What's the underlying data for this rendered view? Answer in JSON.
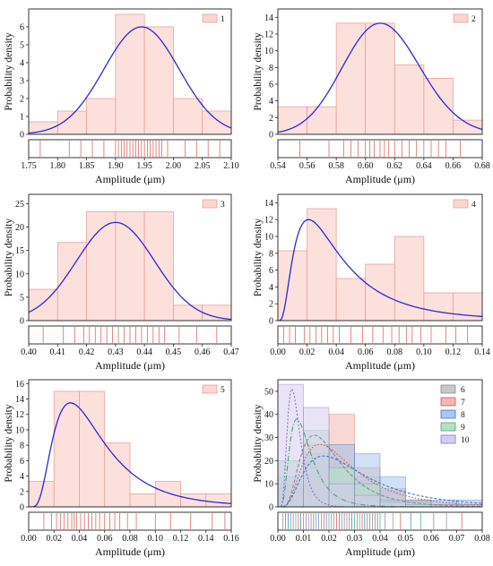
{
  "chart_data": [
    {
      "type": "bar",
      "legend": [
        "1"
      ],
      "xlabel": "Amplitude (μm)",
      "ylabel": "Probability density",
      "xlim": [
        1.75,
        2.1
      ],
      "ylim": [
        0,
        7
      ],
      "xticks": [
        1.75,
        1.8,
        1.85,
        1.9,
        1.95,
        2.0,
        2.05,
        2.1
      ],
      "xtick_decimals": 2,
      "yticks": [
        0,
        1,
        2,
        3,
        4,
        5,
        6
      ],
      "bins": [
        {
          "x0": 1.75,
          "x1": 1.8,
          "value": 0.7
        },
        {
          "x0": 1.8,
          "x1": 1.85,
          "value": 1.3
        },
        {
          "x0": 1.85,
          "x1": 1.9,
          "value": 2.0
        },
        {
          "x0": 1.9,
          "x1": 1.95,
          "value": 6.7
        },
        {
          "x0": 1.95,
          "x1": 2.0,
          "value": 6.0
        },
        {
          "x0": 2.0,
          "x1": 2.05,
          "value": 2.0
        },
        {
          "x0": 2.05,
          "x1": 2.1,
          "value": 1.3
        }
      ],
      "fit": {
        "kind": "normal",
        "mean": 1.945,
        "sd": 0.065,
        "peak": 6.0
      },
      "rug": [
        1.77,
        1.82,
        1.84,
        1.86,
        1.88,
        1.9,
        1.905,
        1.91,
        1.915,
        1.92,
        1.925,
        1.93,
        1.935,
        1.94,
        1.945,
        1.95,
        1.955,
        1.96,
        1.965,
        1.97,
        1.975,
        1.98,
        1.99,
        2.02,
        2.04,
        2.06,
        2.08
      ]
    },
    {
      "type": "bar",
      "legend": [
        "2"
      ],
      "xlabel": "Amplitude (μm)",
      "ylabel": "Probability density",
      "xlim": [
        0.54,
        0.68
      ],
      "ylim": [
        0,
        15
      ],
      "xticks": [
        0.54,
        0.56,
        0.58,
        0.6,
        0.62,
        0.64,
        0.66,
        0.68
      ],
      "xtick_decimals": 2,
      "yticks": [
        0,
        2,
        4,
        6,
        8,
        10,
        12,
        14
      ],
      "bins": [
        {
          "x0": 0.54,
          "x1": 0.56,
          "value": 3.3
        },
        {
          "x0": 0.56,
          "x1": 0.58,
          "value": 3.3
        },
        {
          "x0": 0.58,
          "x1": 0.6,
          "value": 13.3
        },
        {
          "x0": 0.6,
          "x1": 0.62,
          "value": 13.3
        },
        {
          "x0": 0.62,
          "x1": 0.64,
          "value": 8.3
        },
        {
          "x0": 0.64,
          "x1": 0.66,
          "value": 6.7
        },
        {
          "x0": 0.66,
          "x1": 0.68,
          "value": 1.7
        }
      ],
      "fit": {
        "kind": "lognormal",
        "mu": -0.4921,
        "sigma": 0.0434,
        "peak": 13.3
      },
      "rug": [
        0.555,
        0.575,
        0.585,
        0.59,
        0.595,
        0.6,
        0.603,
        0.606,
        0.61,
        0.613,
        0.616,
        0.62,
        0.625,
        0.63,
        0.635,
        0.64,
        0.645,
        0.65,
        0.655,
        0.665
      ]
    },
    {
      "type": "bar",
      "legend": [
        "3"
      ],
      "xlabel": "Amplitude (μm)",
      "ylabel": "Probability density",
      "xlim": [
        0.4,
        0.47
      ],
      "ylim": [
        0,
        27
      ],
      "xticks": [
        0.4,
        0.41,
        0.42,
        0.43,
        0.44,
        0.45,
        0.46,
        0.47
      ],
      "xtick_decimals": 2,
      "yticks": [
        0,
        5,
        10,
        15,
        20,
        25
      ],
      "bins": [
        {
          "x0": 0.4,
          "x1": 0.41,
          "value": 6.7
        },
        {
          "x0": 0.41,
          "x1": 0.42,
          "value": 16.7
        },
        {
          "x0": 0.42,
          "x1": 0.43,
          "value": 23.3
        },
        {
          "x0": 0.43,
          "x1": 0.44,
          "value": 23.3
        },
        {
          "x0": 0.44,
          "x1": 0.45,
          "value": 23.3
        },
        {
          "x0": 0.45,
          "x1": 0.46,
          "value": 3.3
        },
        {
          "x0": 0.46,
          "x1": 0.47,
          "value": 3.3
        }
      ],
      "fit": {
        "kind": "normal",
        "mean": 0.43,
        "sd": 0.0135,
        "peak": 21.0
      },
      "rug": [
        0.405,
        0.412,
        0.416,
        0.419,
        0.421,
        0.423,
        0.425,
        0.427,
        0.429,
        0.431,
        0.433,
        0.435,
        0.437,
        0.439,
        0.441,
        0.443,
        0.445,
        0.447,
        0.452,
        0.458,
        0.465
      ]
    },
    {
      "type": "bar",
      "legend": [
        "4"
      ],
      "xlabel": "Amplitude (μm)",
      "ylabel": "Probability density",
      "xlim": [
        0.0,
        0.14
      ],
      "ylim": [
        0,
        15
      ],
      "xticks": [
        0.0,
        0.02,
        0.04,
        0.06,
        0.08,
        0.1,
        0.12,
        0.14
      ],
      "xtick_decimals": 2,
      "yticks": [
        0,
        2,
        4,
        6,
        8,
        10,
        12,
        14
      ],
      "bins": [
        {
          "x0": 0.0,
          "x1": 0.02,
          "value": 8.3
        },
        {
          "x0": 0.02,
          "x1": 0.04,
          "value": 13.3
        },
        {
          "x0": 0.04,
          "x1": 0.06,
          "value": 5.0
        },
        {
          "x0": 0.06,
          "x1": 0.08,
          "value": 6.7
        },
        {
          "x0": 0.08,
          "x1": 0.1,
          "value": 10.0
        },
        {
          "x0": 0.1,
          "x1": 0.12,
          "value": 3.3
        },
        {
          "x0": 0.12,
          "x1": 0.14,
          "value": 3.3
        }
      ],
      "fit": {
        "kind": "lognormal",
        "mu": -3.3,
        "sigma": 0.75,
        "peak": 12.0
      },
      "rug": [
        0.004,
        0.008,
        0.012,
        0.018,
        0.022,
        0.026,
        0.03,
        0.034,
        0.038,
        0.042,
        0.05,
        0.058,
        0.065,
        0.072,
        0.078,
        0.083,
        0.088,
        0.092,
        0.098,
        0.105,
        0.115,
        0.122,
        0.13
      ]
    },
    {
      "type": "bar",
      "legend": [
        "5"
      ],
      "xlabel": "Amplitude (μm)",
      "ylabel": "Probability density",
      "xlim": [
        0.0,
        0.16
      ],
      "ylim": [
        0,
        16.5
      ],
      "xticks": [
        0.0,
        0.02,
        0.04,
        0.06,
        0.08,
        0.1,
        0.12,
        0.14,
        0.16
      ],
      "xtick_decimals": 2,
      "yticks": [
        0,
        2,
        4,
        6,
        8,
        10,
        12,
        14,
        16
      ],
      "bins": [
        {
          "x0": 0.0,
          "x1": 0.02,
          "value": 3.3
        },
        {
          "x0": 0.02,
          "x1": 0.04,
          "value": 15.0
        },
        {
          "x0": 0.04,
          "x1": 0.06,
          "value": 15.0
        },
        {
          "x0": 0.06,
          "x1": 0.08,
          "value": 8.3
        },
        {
          "x0": 0.08,
          "x1": 0.1,
          "value": 1.7
        },
        {
          "x0": 0.1,
          "x1": 0.12,
          "value": 3.3
        },
        {
          "x0": 0.12,
          "x1": 0.14,
          "value": 1.7
        },
        {
          "x0": 0.14,
          "x1": 0.16,
          "value": 1.7
        }
      ],
      "fit": {
        "kind": "lognormal",
        "mu": -3.05,
        "sigma": 0.6,
        "peak": 13.5
      },
      "rug": [
        0.012,
        0.018,
        0.022,
        0.025,
        0.028,
        0.031,
        0.034,
        0.036,
        0.038,
        0.041,
        0.044,
        0.047,
        0.05,
        0.053,
        0.056,
        0.06,
        0.064,
        0.068,
        0.072,
        0.078,
        0.085,
        0.1,
        0.112,
        0.128,
        0.145,
        0.155
      ]
    },
    {
      "type": "bar",
      "legend": [
        "6",
        "7",
        "8",
        "9",
        "10"
      ],
      "xlabel": "Amplitude (μm)",
      "ylabel": "Probability density",
      "xlim": [
        0.0,
        0.08
      ],
      "ylim": [
        0,
        55
      ],
      "xticks": [
        0.0,
        0.01,
        0.02,
        0.03,
        0.04,
        0.05,
        0.06,
        0.07,
        0.08
      ],
      "xtick_decimals": 2,
      "yticks": [
        0,
        10,
        20,
        30,
        40,
        50
      ],
      "series": [
        {
          "name": "6",
          "color": "#8c8c8c",
          "fill": "#c8c8c8",
          "bins": [
            [
              0.0,
              0.01,
              8
            ],
            [
              0.01,
              0.02,
              20
            ],
            [
              0.02,
              0.03,
              27
            ],
            [
              0.03,
              0.04,
              13
            ],
            [
              0.04,
              0.05,
              8
            ],
            [
              0.05,
              0.06,
              3
            ],
            [
              0.06,
              0.07,
              1
            ],
            [
              0.07,
              0.08,
              1
            ]
          ],
          "fit": {
            "kind": "lognormal",
            "mu": -3.95,
            "sigma": 0.55,
            "peak": 31
          }
        },
        {
          "name": "7",
          "color": "#d9534f",
          "fill": "#f2b8b0",
          "bins": [
            [
              0.0,
              0.01,
              10
            ],
            [
              0.01,
              0.02,
              27
            ],
            [
              0.02,
              0.03,
              40
            ],
            [
              0.03,
              0.04,
              17
            ],
            [
              0.04,
              0.05,
              7
            ],
            [
              0.05,
              0.06,
              3
            ],
            [
              0.06,
              0.07,
              2
            ],
            [
              0.07,
              0.08,
              1
            ]
          ],
          "fit": {
            "kind": "lognormal",
            "mu": -3.75,
            "sigma": 0.6,
            "peak": 27
          }
        },
        {
          "name": "8",
          "color": "#3a78c8",
          "fill": "#a9c8ee",
          "bins": [
            [
              0.0,
              0.01,
              13
            ],
            [
              0.01,
              0.02,
              23
            ],
            [
              0.02,
              0.03,
              27
            ],
            [
              0.03,
              0.04,
              23
            ],
            [
              0.04,
              0.05,
              13
            ],
            [
              0.05,
              0.06,
              3
            ],
            [
              0.06,
              0.07,
              3
            ],
            [
              0.07,
              0.08,
              3
            ]
          ],
          "fit": {
            "kind": "lognormal",
            "mu": -3.6,
            "sigma": 0.65,
            "peak": 22
          }
        },
        {
          "name": "9",
          "color": "#4aa776",
          "fill": "#b5e0c4",
          "bins": [
            [
              0.0,
              0.01,
              20
            ],
            [
              0.01,
              0.02,
              33
            ],
            [
              0.02,
              0.03,
              17
            ],
            [
              0.03,
              0.04,
              10
            ],
            [
              0.04,
              0.05,
              3
            ],
            [
              0.05,
              0.06,
              2
            ],
            [
              0.06,
              0.07,
              1
            ],
            [
              0.07,
              0.08,
              1
            ]
          ],
          "fit": {
            "kind": "lognormal",
            "mu": -4.6,
            "sigma": 0.55,
            "peak": 38
          }
        },
        {
          "name": "10",
          "color": "#8b6fc8",
          "fill": "#d6ccef",
          "bins": [
            [
              0.0,
              0.01,
              53
            ],
            [
              0.01,
              0.02,
              43
            ],
            [
              0.02,
              0.03,
              10
            ],
            [
              0.03,
              0.04,
              5
            ],
            [
              0.04,
              0.05,
              2
            ],
            [
              0.05,
              0.06,
              1
            ],
            [
              0.06,
              0.07,
              1
            ],
            [
              0.07,
              0.08,
              1
            ]
          ],
          "fit": {
            "kind": "lognormal",
            "mu": -5.0,
            "sigma": 0.45,
            "peak": 51
          }
        }
      ],
      "rug": [
        0.002,
        0.003,
        0.004,
        0.005,
        0.006,
        0.007,
        0.008,
        0.009,
        0.01,
        0.011,
        0.012,
        0.013,
        0.014,
        0.015,
        0.016,
        0.017,
        0.018,
        0.019,
        0.02,
        0.021,
        0.022,
        0.023,
        0.024,
        0.025,
        0.026,
        0.027,
        0.028,
        0.029,
        0.03,
        0.031,
        0.032,
        0.033,
        0.034,
        0.035,
        0.036,
        0.037,
        0.038,
        0.039,
        0.04,
        0.042,
        0.045,
        0.048,
        0.052,
        0.056,
        0.061,
        0.066,
        0.072
      ]
    }
  ]
}
